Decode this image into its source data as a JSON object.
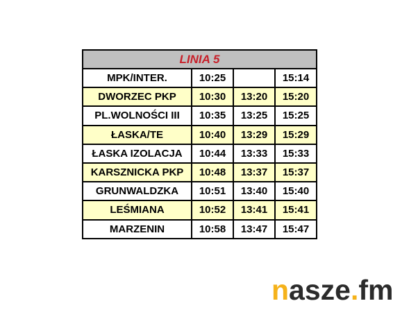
{
  "title": "LINIA 5",
  "rows": [
    {
      "stop": "MPK/INTER.",
      "times": [
        "10:25",
        "",
        "15:14"
      ]
    },
    {
      "stop": "DWORZEC PKP",
      "times": [
        "10:30",
        "13:20",
        "15:20"
      ]
    },
    {
      "stop": "PL.WOLNOŚCI III",
      "times": [
        "10:35",
        "13:25",
        "15:25"
      ]
    },
    {
      "stop": "ŁASKA/TE",
      "times": [
        "10:40",
        "13:29",
        "15:29"
      ]
    },
    {
      "stop": "ŁASKA IZOLACJA",
      "times": [
        "10:44",
        "13:33",
        "15:33"
      ]
    },
    {
      "stop": "KARSZNICKA PKP",
      "times": [
        "10:48",
        "13:37",
        "15:37"
      ]
    },
    {
      "stop": "GRUNWALDZKA",
      "times": [
        "10:51",
        "13:40",
        "15:40"
      ]
    },
    {
      "stop": "LEŚMIANA",
      "times": [
        "10:52",
        "13:41",
        "15:41"
      ]
    },
    {
      "stop": "MARZENIN",
      "times": [
        "10:58",
        "13:47",
        "15:47"
      ]
    }
  ],
  "logo": {
    "n": "n",
    "asze": "asze",
    "dot": ".",
    "fm": "fm"
  },
  "colors": {
    "title": "#c8202a",
    "header_bg": "#c0c0c0",
    "alt_row": "#ffffc8",
    "logo_accent": "#f5b21a"
  }
}
